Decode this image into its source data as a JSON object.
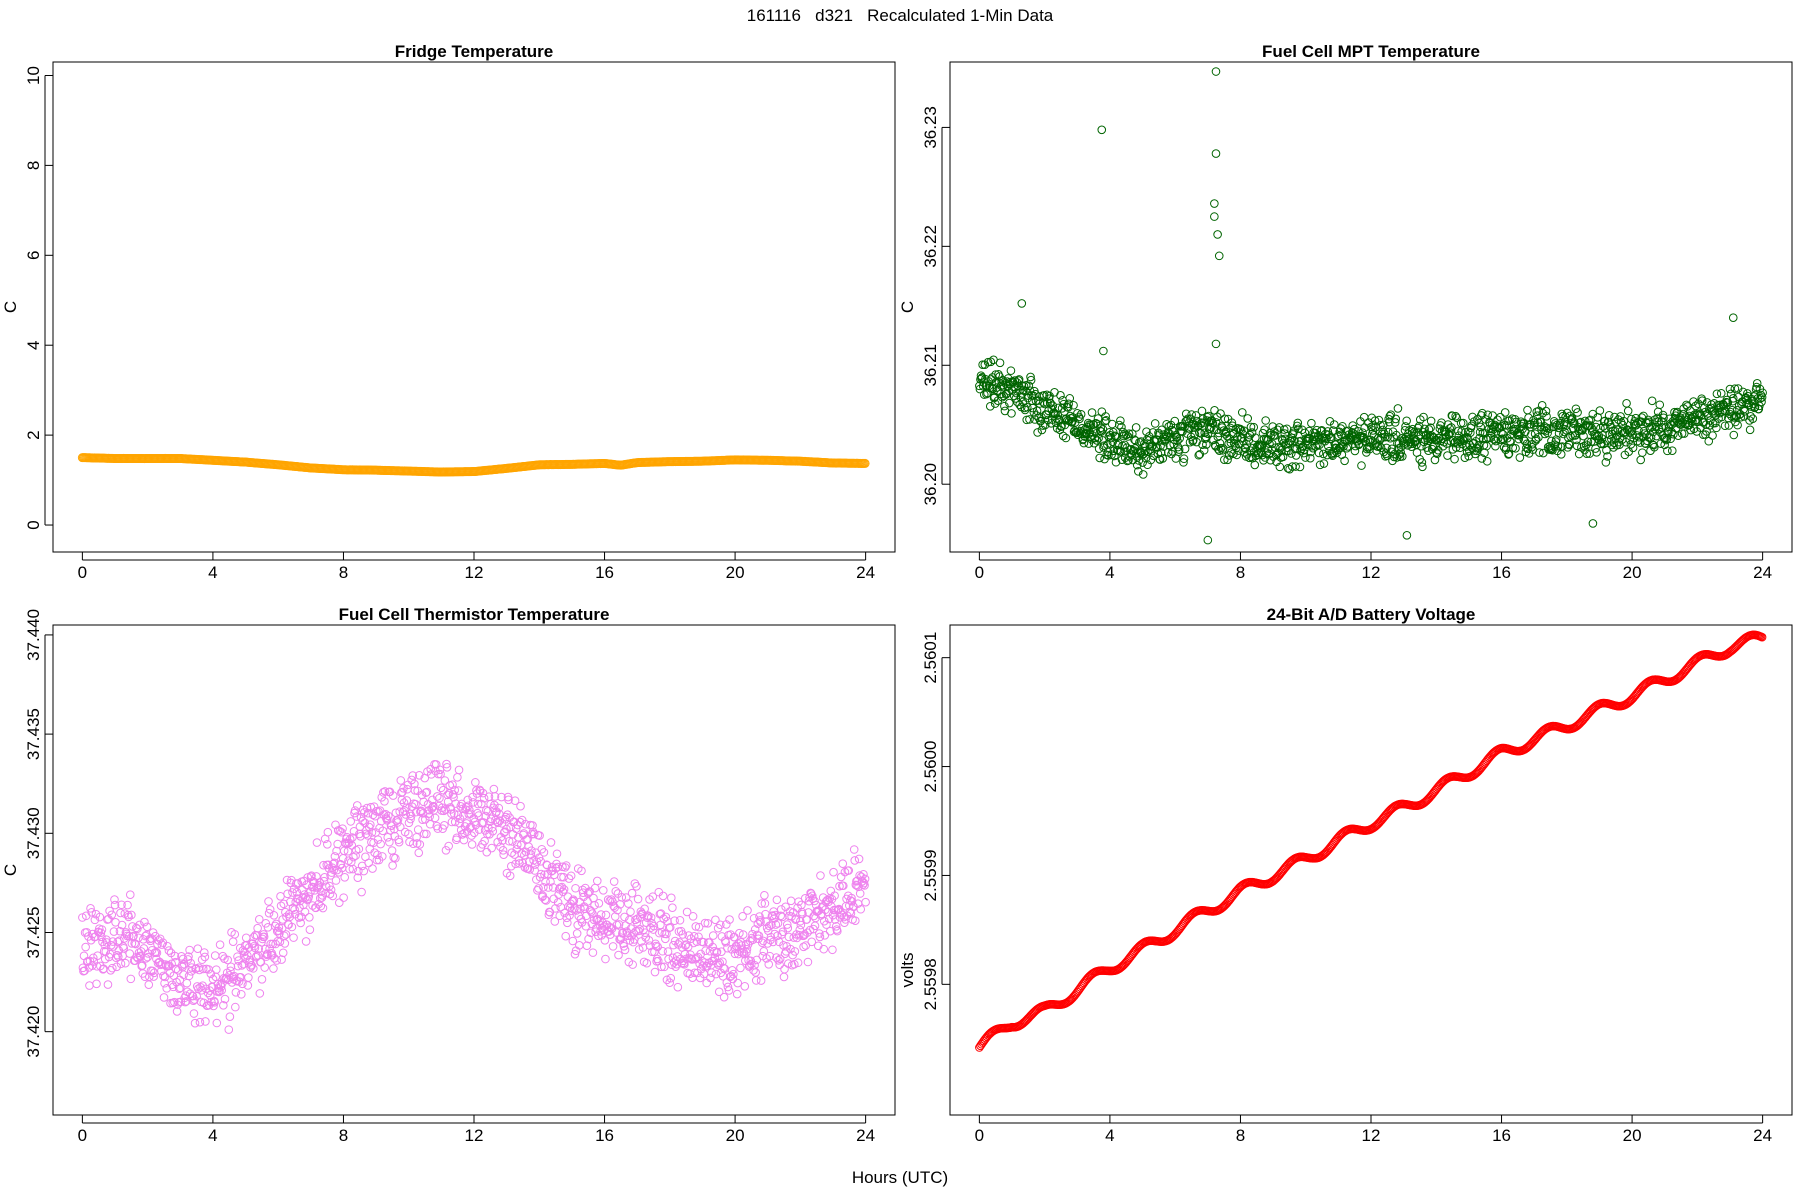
{
  "page": {
    "title": "161116   d321   Recalculated 1-Min Data",
    "xlabel": "Hours (UTC)"
  },
  "chart_data": [
    {
      "type": "scatter",
      "title": "Fridge Temperature",
      "xlabel": "",
      "ylabel": "C",
      "xlim": [
        -0.9,
        24.9
      ],
      "ylim": [
        -0.6,
        10.3
      ],
      "xticks": [
        0,
        4,
        8,
        12,
        16,
        20,
        24
      ],
      "yticks": [
        0,
        2,
        4,
        6,
        8,
        10
      ],
      "ytick_labels": [
        "0",
        "2",
        "4",
        "6",
        "8",
        "10"
      ],
      "marker": "open-circle",
      "color": "#FFA500",
      "series": [
        {
          "x": [
            0,
            1,
            2,
            3,
            4,
            5,
            6,
            7,
            8,
            9,
            10,
            11,
            12,
            13,
            14,
            15,
            16,
            16.5,
            17,
            18,
            19,
            20,
            21,
            22,
            23,
            24
          ],
          "y": [
            1.5,
            1.48,
            1.48,
            1.48,
            1.44,
            1.4,
            1.34,
            1.27,
            1.23,
            1.22,
            1.2,
            1.18,
            1.19,
            1.26,
            1.34,
            1.35,
            1.37,
            1.33,
            1.39,
            1.41,
            1.42,
            1.45,
            1.44,
            1.42,
            1.38,
            1.37
          ]
        }
      ]
    },
    {
      "type": "scatter",
      "title": "Fuel Cell MPT Temperature",
      "xlabel": "",
      "ylabel": "C",
      "xlim": [
        -0.9,
        24.9
      ],
      "ylim": [
        36.1943,
        36.2355
      ],
      "xticks": [
        0,
        4,
        8,
        12,
        16,
        20,
        24
      ],
      "yticks": [
        36.2,
        36.21,
        36.22,
        36.23
      ],
      "ytick_labels": [
        "36.20",
        "36.21",
        "36.22",
        "36.23"
      ],
      "marker": "open-circle",
      "color": "#006400",
      "series": [
        {
          "x": [
            0,
            1,
            2,
            3,
            4,
            5,
            6,
            7,
            8,
            9,
            10,
            11,
            12,
            13,
            14,
            15,
            16,
            17,
            18,
            19,
            20,
            21,
            22,
            23,
            24
          ],
          "y": [
            36.2085,
            36.208,
            36.2065,
            36.2052,
            36.2035,
            36.2028,
            36.2038,
            36.2045,
            36.2035,
            36.2033,
            36.2033,
            36.2035,
            36.2038,
            36.2038,
            36.2035,
            36.2038,
            36.2045,
            36.2042,
            36.2045,
            36.2042,
            36.2045,
            36.2048,
            36.2055,
            36.2062,
            36.207
          ],
          "outliers": [
            [
              3.75,
              36.2298
            ],
            [
              3.8,
              36.2112
            ],
            [
              7.0,
              36.1953
            ],
            [
              7.2,
              36.2236
            ],
            [
              7.25,
              36.2347
            ],
            [
              7.2,
              36.2225
            ],
            [
              7.25,
              36.2278
            ],
            [
              7.3,
              36.221
            ],
            [
              7.35,
              36.2192
            ],
            [
              7.25,
              36.2118
            ],
            [
              1.3,
              36.2152
            ],
            [
              23.1,
              36.214
            ],
            [
              18.8,
              36.1967
            ],
            [
              13.1,
              36.1957
            ]
          ]
        }
      ]
    },
    {
      "type": "scatter",
      "title": "Fuel Cell Thermistor Temperature",
      "xlabel": "",
      "ylabel": "C",
      "xlim": [
        -0.9,
        24.9
      ],
      "ylim": [
        37.4158,
        37.4405
      ],
      "xticks": [
        0,
        4,
        8,
        12,
        16,
        20,
        24
      ],
      "yticks": [
        37.42,
        37.425,
        37.43,
        37.435,
        37.44
      ],
      "ytick_labels": [
        "37.420",
        "37.425",
        "37.430",
        "37.435",
        "37.440"
      ],
      "marker": "open-circle",
      "color": "#EE82EE",
      "series": [
        {
          "x": [
            0,
            1,
            2,
            3,
            4,
            5,
            6,
            7,
            8,
            9,
            10,
            11,
            12,
            13,
            14,
            15,
            16,
            17,
            18,
            19,
            20,
            21,
            22,
            23,
            24
          ],
          "y": [
            37.4245,
            37.4248,
            37.4242,
            37.4225,
            37.4218,
            37.4235,
            37.4252,
            37.4272,
            37.4288,
            37.4302,
            37.4312,
            37.4315,
            37.4312,
            37.43,
            37.4285,
            37.4262,
            37.4255,
            37.4252,
            37.4245,
            37.4238,
            37.4238,
            37.4248,
            37.4255,
            37.4262,
            37.4272
          ]
        }
      ]
    },
    {
      "type": "scatter",
      "title": "24-Bit A/D Battery Voltage",
      "xlabel": "",
      "ylabel": "volts",
      "xlim": [
        -0.9,
        24.9
      ],
      "ylim": [
        2.55968,
        2.56013
      ],
      "xticks": [
        0,
        4,
        8,
        12,
        16,
        20,
        24
      ],
      "yticks": [
        2.5598,
        2.5599,
        2.56,
        2.5601
      ],
      "ytick_labels": [
        "2.5598",
        "2.5599",
        "2.5600",
        "2.5601"
      ],
      "marker": "open-circle",
      "color": "#FF0000",
      "series": [
        {
          "x": [
            0,
            1,
            2,
            3,
            4,
            5,
            6,
            7,
            8,
            9,
            10,
            11,
            12,
            13,
            14,
            15,
            16,
            17,
            18,
            19,
            20,
            21,
            22,
            23,
            24
          ],
          "y": [
            2.559742,
            2.559765,
            2.559775,
            2.559795,
            2.559815,
            2.559832,
            2.55985,
            2.559868,
            2.559885,
            2.5599,
            2.559915,
            2.559932,
            2.559948,
            2.559962,
            2.559978,
            2.559995,
            2.560012,
            2.560025,
            2.560038,
            2.560052,
            2.560065,
            2.56008,
            2.560095,
            2.56011,
            2.560118
          ]
        }
      ]
    }
  ]
}
